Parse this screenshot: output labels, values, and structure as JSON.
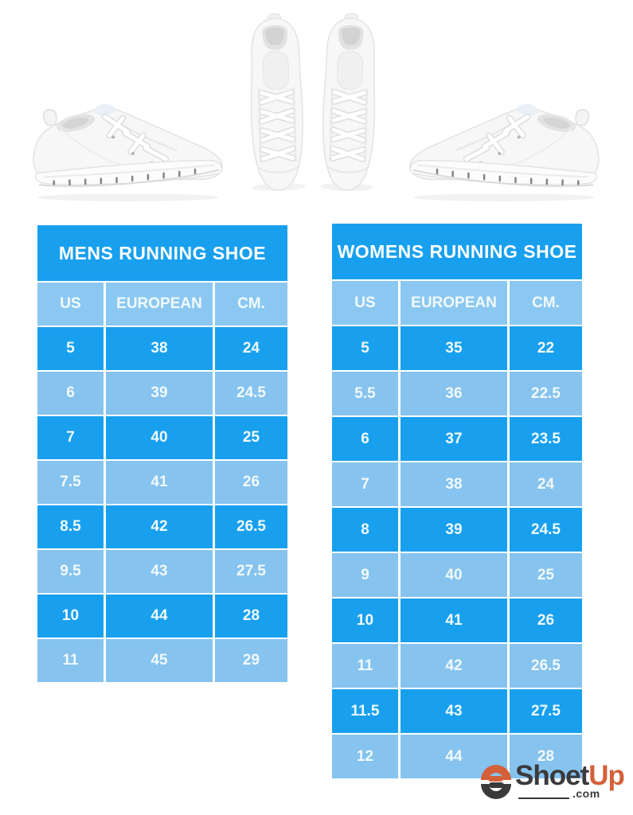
{
  "mens_table": {
    "title": "MENS RUNNING SHOE",
    "columns": [
      "US",
      "EUROPEAN",
      "CM."
    ],
    "rows": [
      [
        "5",
        "38",
        "24"
      ],
      [
        "6",
        "39",
        "24.5"
      ],
      [
        "7",
        "40",
        "25"
      ],
      [
        "7.5",
        "41",
        "26"
      ],
      [
        "8.5",
        "42",
        "26.5"
      ],
      [
        "9.5",
        "43",
        "27.5"
      ],
      [
        "10",
        "44",
        "28"
      ],
      [
        "11",
        "45",
        "29"
      ]
    ]
  },
  "womens_table": {
    "title": "WOMENS RUNNING SHOE",
    "columns": [
      "US",
      "EUROPEAN",
      "CM."
    ],
    "rows": [
      [
        "5",
        "35",
        "22"
      ],
      [
        "5.5",
        "36",
        "22.5"
      ],
      [
        "6",
        "37",
        "23.5"
      ],
      [
        "7",
        "38",
        "24"
      ],
      [
        "8",
        "39",
        "24.5"
      ],
      [
        "9",
        "40",
        "25"
      ],
      [
        "10",
        "41",
        "26"
      ],
      [
        "11",
        "42",
        "26.5"
      ],
      [
        "11.5",
        "43",
        "27.5"
      ],
      [
        "12",
        "44",
        "28"
      ]
    ]
  },
  "logo": {
    "brand": "Shoet",
    "brand_accent": "Up",
    "domain_suffix": ".com"
  },
  "colors": {
    "row_dark": "#18A0EE",
    "row_light": "#86C3EE",
    "header_blue": "#8BC8F1",
    "table_text": "#F1FAFE",
    "logo_dark": "#3A3A3C",
    "logo_accent": "#D4603A"
  }
}
